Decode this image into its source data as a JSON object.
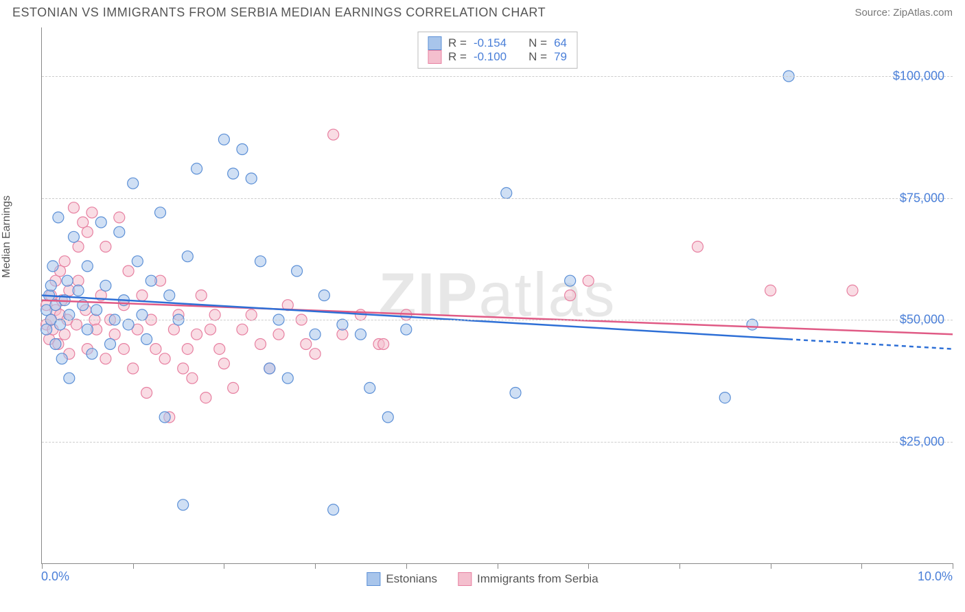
{
  "header": {
    "title": "ESTONIAN VS IMMIGRANTS FROM SERBIA MEDIAN EARNINGS CORRELATION CHART",
    "source": "Source: ZipAtlas.com"
  },
  "chart": {
    "type": "scatter",
    "y_axis_label": "Median Earnings",
    "watermark": "ZIPatlas",
    "xlim": [
      0,
      10
    ],
    "ylim": [
      0,
      110000
    ],
    "x_ticks": [
      0,
      1,
      2,
      3,
      4,
      5,
      6,
      7,
      8,
      9,
      10
    ],
    "x_tick_labels": {
      "left": "0.0%",
      "right": "10.0%"
    },
    "y_gridlines": [
      25000,
      50000,
      75000,
      100000
    ],
    "y_tick_labels": [
      "$25,000",
      "$50,000",
      "$75,000",
      "$100,000"
    ],
    "grid_color": "#cccccc",
    "axis_color": "#888888",
    "tick_label_color": "#4a7fd8",
    "background_color": "#ffffff",
    "marker_radius": 8,
    "marker_opacity": 0.55,
    "series": {
      "estonians": {
        "label": "Estonians",
        "fill_color": "#a8c5eb",
        "stroke_color": "#5b8fd6",
        "line_color": "#2d6fd6",
        "R": "-0.154",
        "N": "64",
        "trend": {
          "x1": 0,
          "y1": 55000,
          "x2": 8.2,
          "y2": 46000,
          "dash_x2": 10,
          "dash_y2": 44000
        },
        "points": [
          [
            0.05,
            52000
          ],
          [
            0.05,
            48000
          ],
          [
            0.08,
            55000
          ],
          [
            0.1,
            50000
          ],
          [
            0.1,
            57000
          ],
          [
            0.12,
            61000
          ],
          [
            0.15,
            53000
          ],
          [
            0.15,
            45000
          ],
          [
            0.18,
            71000
          ],
          [
            0.2,
            49000
          ],
          [
            0.22,
            42000
          ],
          [
            0.25,
            54000
          ],
          [
            0.28,
            58000
          ],
          [
            0.3,
            51000
          ],
          [
            0.3,
            38000
          ],
          [
            0.35,
            67000
          ],
          [
            0.4,
            56000
          ],
          [
            0.45,
            53000
          ],
          [
            0.5,
            48000
          ],
          [
            0.5,
            61000
          ],
          [
            0.55,
            43000
          ],
          [
            0.6,
            52000
          ],
          [
            0.65,
            70000
          ],
          [
            0.7,
            57000
          ],
          [
            0.75,
            45000
          ],
          [
            0.8,
            50000
          ],
          [
            0.85,
            68000
          ],
          [
            0.9,
            54000
          ],
          [
            0.95,
            49000
          ],
          [
            1.0,
            78000
          ],
          [
            1.05,
            62000
          ],
          [
            1.1,
            51000
          ],
          [
            1.15,
            46000
          ],
          [
            1.2,
            58000
          ],
          [
            1.3,
            72000
          ],
          [
            1.35,
            30000
          ],
          [
            1.4,
            55000
          ],
          [
            1.5,
            50000
          ],
          [
            1.55,
            12000
          ],
          [
            1.6,
            63000
          ],
          [
            1.7,
            81000
          ],
          [
            2.0,
            87000
          ],
          [
            2.1,
            80000
          ],
          [
            2.2,
            85000
          ],
          [
            2.3,
            79000
          ],
          [
            2.4,
            62000
          ],
          [
            2.5,
            40000
          ],
          [
            2.6,
            50000
          ],
          [
            2.7,
            38000
          ],
          [
            2.8,
            60000
          ],
          [
            3.0,
            47000
          ],
          [
            3.1,
            55000
          ],
          [
            3.2,
            11000
          ],
          [
            3.3,
            49000
          ],
          [
            3.5,
            47000
          ],
          [
            3.6,
            36000
          ],
          [
            3.8,
            30000
          ],
          [
            4.0,
            48000
          ],
          [
            5.1,
            76000
          ],
          [
            5.2,
            35000
          ],
          [
            5.8,
            58000
          ],
          [
            7.5,
            34000
          ],
          [
            7.8,
            49000
          ],
          [
            8.2,
            100000
          ]
        ]
      },
      "serbia": {
        "label": "Immigrants from Serbia",
        "fill_color": "#f4bfce",
        "stroke_color": "#e77fa0",
        "line_color": "#e05a85",
        "R": "-0.100",
        "N": "79",
        "trend": {
          "x1": 0,
          "y1": 54000,
          "x2": 10,
          "y2": 47000
        },
        "points": [
          [
            0.05,
            49000
          ],
          [
            0.05,
            53000
          ],
          [
            0.08,
            46000
          ],
          [
            0.1,
            55000
          ],
          [
            0.1,
            50000
          ],
          [
            0.12,
            48000
          ],
          [
            0.15,
            58000
          ],
          [
            0.15,
            52000
          ],
          [
            0.18,
            45000
          ],
          [
            0.2,
            60000
          ],
          [
            0.2,
            51000
          ],
          [
            0.22,
            54000
          ],
          [
            0.25,
            47000
          ],
          [
            0.25,
            62000
          ],
          [
            0.28,
            50000
          ],
          [
            0.3,
            56000
          ],
          [
            0.3,
            43000
          ],
          [
            0.35,
            73000
          ],
          [
            0.38,
            49000
          ],
          [
            0.4,
            58000
          ],
          [
            0.4,
            65000
          ],
          [
            0.45,
            70000
          ],
          [
            0.48,
            52000
          ],
          [
            0.5,
            68000
          ],
          [
            0.5,
            44000
          ],
          [
            0.55,
            72000
          ],
          [
            0.58,
            50000
          ],
          [
            0.6,
            48000
          ],
          [
            0.65,
            55000
          ],
          [
            0.7,
            42000
          ],
          [
            0.7,
            65000
          ],
          [
            0.75,
            50000
          ],
          [
            0.8,
            47000
          ],
          [
            0.85,
            71000
          ],
          [
            0.9,
            53000
          ],
          [
            0.9,
            44000
          ],
          [
            0.95,
            60000
          ],
          [
            1.0,
            40000
          ],
          [
            1.05,
            48000
          ],
          [
            1.1,
            55000
          ],
          [
            1.15,
            35000
          ],
          [
            1.2,
            50000
          ],
          [
            1.25,
            44000
          ],
          [
            1.3,
            58000
          ],
          [
            1.35,
            42000
          ],
          [
            1.4,
            30000
          ],
          [
            1.45,
            48000
          ],
          [
            1.5,
            51000
          ],
          [
            1.55,
            40000
          ],
          [
            1.6,
            44000
          ],
          [
            1.65,
            38000
          ],
          [
            1.7,
            47000
          ],
          [
            1.75,
            55000
          ],
          [
            1.8,
            34000
          ],
          [
            1.85,
            48000
          ],
          [
            1.9,
            51000
          ],
          [
            1.95,
            44000
          ],
          [
            2.0,
            41000
          ],
          [
            2.1,
            36000
          ],
          [
            2.2,
            48000
          ],
          [
            2.3,
            51000
          ],
          [
            2.4,
            45000
          ],
          [
            2.5,
            40000
          ],
          [
            2.6,
            47000
          ],
          [
            2.7,
            53000
          ],
          [
            2.85,
            50000
          ],
          [
            2.9,
            45000
          ],
          [
            3.0,
            43000
          ],
          [
            3.2,
            88000
          ],
          [
            3.3,
            47000
          ],
          [
            3.5,
            51000
          ],
          [
            3.7,
            45000
          ],
          [
            3.75,
            45000
          ],
          [
            4.0,
            51000
          ],
          [
            5.8,
            55000
          ],
          [
            6.0,
            58000
          ],
          [
            7.2,
            65000
          ],
          [
            8.0,
            56000
          ],
          [
            8.9,
            56000
          ]
        ]
      }
    },
    "top_legend": {
      "R_label": "R =",
      "N_label": "N ="
    },
    "bottom_legend_order": [
      "estonians",
      "serbia"
    ]
  }
}
